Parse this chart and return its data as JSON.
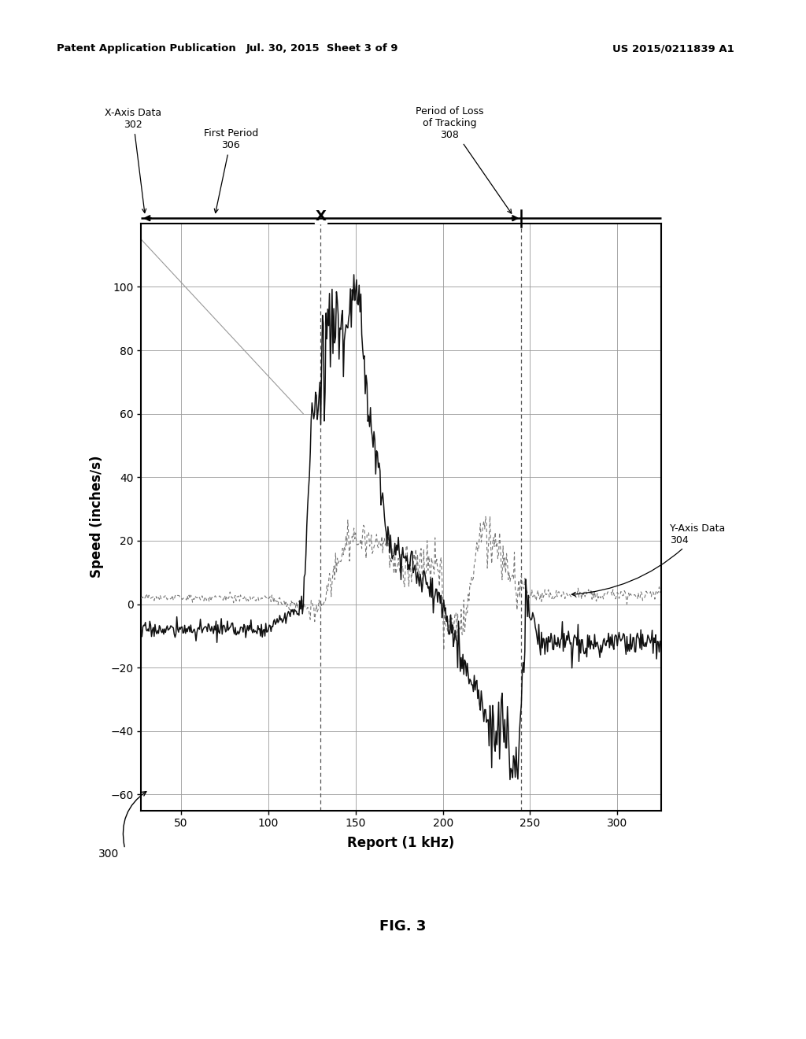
{
  "header_left": "Patent Application Publication",
  "header_mid": "Jul. 30, 2015  Sheet 3 of 9",
  "header_right": "US 2015/0211839 A1",
  "fig_label": "FIG. 3",
  "fig_number": "300",
  "xlabel": "Report (1 kHz)",
  "ylabel": "Speed (inches/s)",
  "xlim": [
    27,
    325
  ],
  "ylim": [
    -65,
    120
  ],
  "xticks": [
    50,
    100,
    150,
    200,
    250,
    300
  ],
  "yticks": [
    -60,
    -40,
    -20,
    0,
    20,
    40,
    60,
    80,
    100
  ],
  "vline_solid_1": 50,
  "vline_solid_2": 100,
  "vline_solid_3": 150,
  "vline_solid_4": 200,
  "vline_solid_5": 250,
  "vline_solid_6": 300,
  "vline_dashed_fp": 130,
  "vline_dashed_loss": 245,
  "bracket_top_y": 115,
  "bracket_left_x": 27,
  "bracket_fp_x": 130,
  "bracket_loss_x": 245,
  "bracket_right_x": 325,
  "background_color": "#ffffff",
  "grid_color": "#888888",
  "line_color_x": "#111111",
  "line_color_y": "#777777",
  "annotation_line_color": "#555555"
}
